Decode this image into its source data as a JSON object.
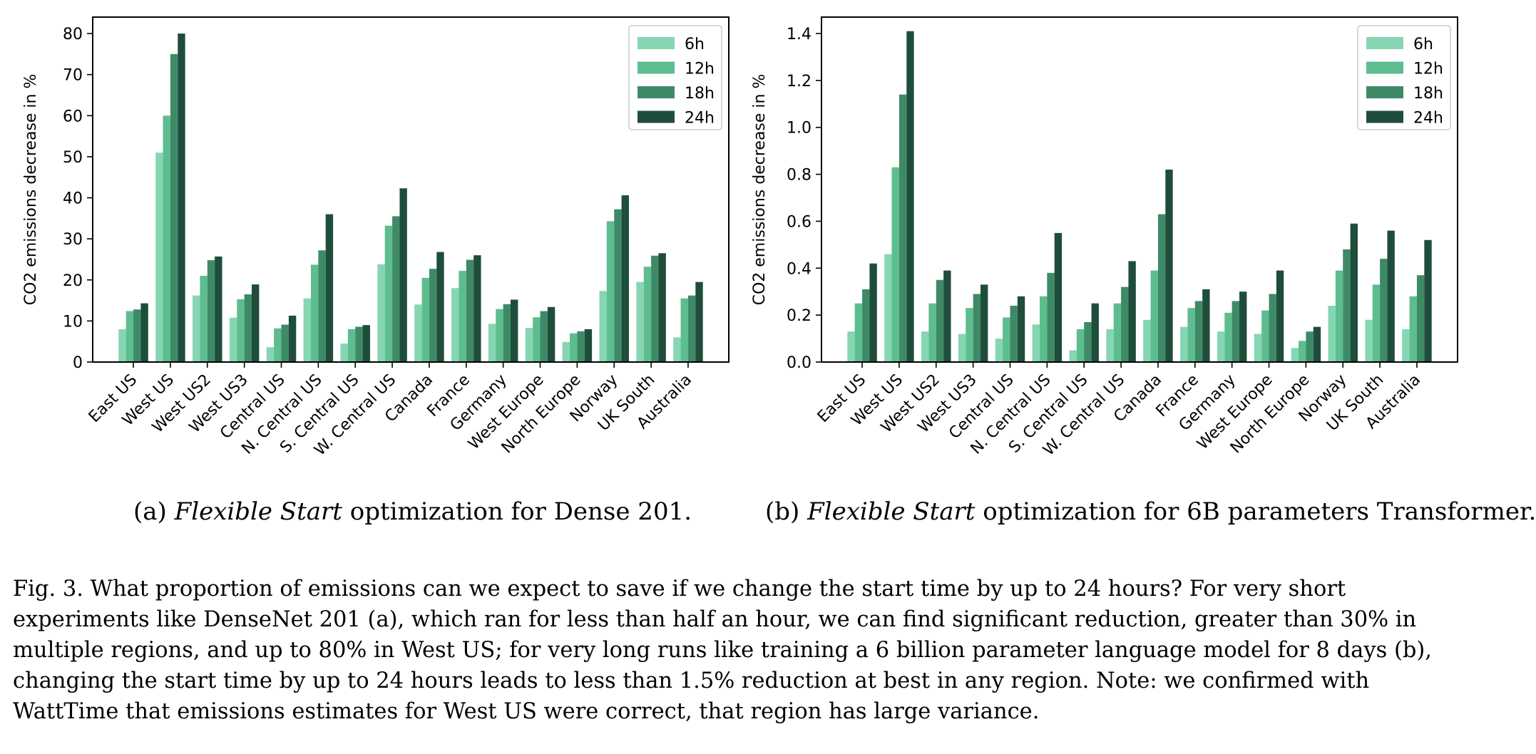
{
  "colors": {
    "6h": "#86d6b3",
    "12h": "#5dbd8e",
    "18h": "#3e8a67",
    "24h": "#1f4d3c",
    "axis": "#000000"
  },
  "chart_data": [
    {
      "type": "bar",
      "ylabel": "CO2 emissions decrease in %",
      "ylim": [
        0,
        84
      ],
      "yticks": [
        "0",
        "10",
        "20",
        "30",
        "40",
        "50",
        "60",
        "70",
        "80"
      ],
      "legend_position": "top-right",
      "categories": [
        "East US",
        "West US",
        "West US2",
        "West US3",
        "Central US",
        "N. Central US",
        "S. Central US",
        "W. Central US",
        "Canada",
        "France",
        "Germany",
        "West Europe",
        "North Europe",
        "Norway",
        "UK South",
        "Australia"
      ],
      "series": [
        {
          "name": "6h",
          "values": [
            8,
            51,
            16.2,
            10.8,
            3.6,
            15.5,
            4.5,
            23.8,
            14,
            18,
            9.3,
            8.3,
            4.9,
            17.3,
            19.5,
            6
          ]
        },
        {
          "name": "12h",
          "values": [
            12.4,
            60,
            21,
            15.3,
            8.2,
            23.7,
            8,
            33.2,
            20.5,
            22.2,
            12.9,
            10.9,
            7,
            34.3,
            23.2,
            15.5
          ]
        },
        {
          "name": "18h",
          "values": [
            12.8,
            75,
            24.8,
            16.5,
            9.1,
            27.2,
            8.6,
            35.5,
            22.7,
            24.9,
            14.1,
            12.4,
            7.5,
            37.2,
            25.9,
            16.2
          ]
        },
        {
          "name": "24h",
          "values": [
            14.3,
            80,
            25.7,
            18.9,
            11.3,
            36,
            9,
            42.3,
            26.8,
            26,
            15.2,
            13.4,
            8,
            40.6,
            26.5,
            19.5
          ]
        }
      ]
    },
    {
      "type": "bar",
      "ylabel": "CO2 emissions decrease in %",
      "ylim": [
        0,
        1.47
      ],
      "yticks": [
        "0.0",
        "0.2",
        "0.4",
        "0.6",
        "0.8",
        "1.0",
        "1.2",
        "1.4"
      ],
      "legend_position": "top-right",
      "categories": [
        "East US",
        "West US",
        "West US2",
        "West US3",
        "Central US",
        "N. Central US",
        "S. Central US",
        "W. Central US",
        "Canada",
        "France",
        "Germany",
        "West Europe",
        "North Europe",
        "Norway",
        "UK South",
        "Australia"
      ],
      "series": [
        {
          "name": "6h",
          "values": [
            0.13,
            0.46,
            0.13,
            0.12,
            0.1,
            0.16,
            0.05,
            0.14,
            0.18,
            0.15,
            0.13,
            0.12,
            0.06,
            0.24,
            0.18,
            0.14
          ]
        },
        {
          "name": "12h",
          "values": [
            0.25,
            0.83,
            0.25,
            0.23,
            0.19,
            0.28,
            0.14,
            0.25,
            0.39,
            0.23,
            0.21,
            0.22,
            0.09,
            0.39,
            0.33,
            0.28
          ]
        },
        {
          "name": "18h",
          "values": [
            0.31,
            1.14,
            0.35,
            0.29,
            0.24,
            0.38,
            0.17,
            0.32,
            0.63,
            0.26,
            0.26,
            0.29,
            0.13,
            0.48,
            0.44,
            0.37
          ]
        },
        {
          "name": "24h",
          "values": [
            0.42,
            1.41,
            0.39,
            0.33,
            0.28,
            0.55,
            0.25,
            0.43,
            0.82,
            0.31,
            0.3,
            0.39,
            0.15,
            0.59,
            0.56,
            0.52
          ]
        }
      ]
    }
  ],
  "subcaptions": {
    "a": {
      "prefix": "(a) ",
      "emph": "Flexible Start",
      "rest": " optimization for Dense 201."
    },
    "b": {
      "prefix": "(b) ",
      "emph": "Flexible Start",
      "rest": " optimization for 6B parameters Transformer."
    }
  },
  "caption": "Fig. 3.  What proportion of emissions can we expect to save if we change the start time by up to 24 hours? For very short experiments like DenseNet 201 (a), which ran for less than half an hour, we can find significant reduction, greater than 30% in multiple regions, and up to 80% in West US; for very long runs like training a 6 billion parameter language model for 8 days (b), changing the start time by up to 24 hours leads to less than 1.5% reduction at best in any region. Note: we confirmed with WattTime that emissions estimates for West US were correct, that region has large variance."
}
